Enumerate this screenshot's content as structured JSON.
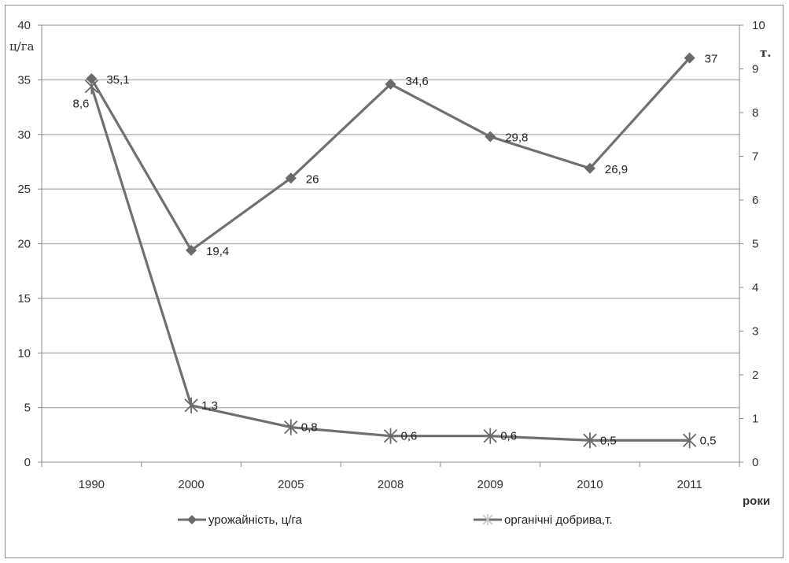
{
  "chart_data": {
    "type": "line",
    "categories": [
      "1990",
      "2000",
      "2005",
      "2008",
      "2009",
      "2010",
      "2011"
    ],
    "xlabel": "роки",
    "y_left": {
      "unit_label": "ц/га",
      "ylim": [
        0,
        40
      ],
      "ticks": [
        0,
        5,
        10,
        15,
        20,
        25,
        30,
        35,
        40
      ]
    },
    "y_right": {
      "unit_label": "т.",
      "ylim": [
        0,
        10
      ],
      "ticks": [
        0,
        1,
        2,
        3,
        4,
        5,
        6,
        7,
        8,
        9,
        10
      ]
    },
    "grid": true,
    "legend_position": "bottom",
    "series": [
      {
        "name": "урожайність, ц/га",
        "axis": "left",
        "marker": "diamond",
        "color": "#707070",
        "values": [
          35.1,
          19.4,
          26,
          34.6,
          29.8,
          26.9,
          37
        ],
        "labels": [
          "35,1",
          "19,4",
          "26",
          "34,6",
          "29,8",
          "26,9",
          "37"
        ]
      },
      {
        "name": "органічні добрива,т.",
        "axis": "right",
        "marker": "star",
        "color": "#707070",
        "values": [
          8.6,
          1.3,
          0.8,
          0.6,
          0.6,
          0.5,
          0.5
        ],
        "labels": [
          "8,6",
          "1,3",
          "0,8",
          "0,6",
          "0,6",
          "0,5",
          "0,5"
        ]
      }
    ]
  }
}
